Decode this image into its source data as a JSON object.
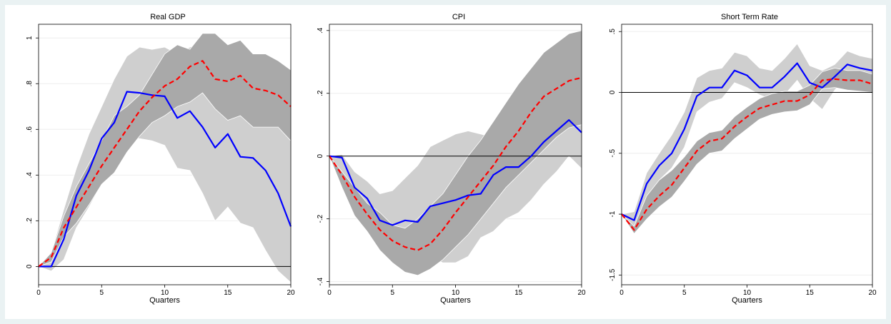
{
  "chart_data": [
    {
      "type": "line",
      "title": "Real GDP",
      "xlabel": "Quarters",
      "ylabel": "",
      "xlim": [
        0,
        20
      ],
      "ylim": [
        -0.08,
        1.06
      ],
      "x_ticks": [
        0,
        5,
        10,
        15,
        20
      ],
      "x_tick_labels": [
        "0",
        "5",
        "10",
        "15",
        "20"
      ],
      "y_ticks": [
        0,
        0.2,
        0.4,
        0.6,
        0.8,
        1
      ],
      "y_tick_labels": [
        "0",
        ".2",
        ".4",
        ".6",
        ".8",
        "1"
      ],
      "zero_line": true,
      "x": [
        0,
        1,
        2,
        3,
        4,
        5,
        6,
        7,
        8,
        9,
        10,
        11,
        12,
        13,
        14,
        15,
        16,
        17,
        18,
        19,
        20
      ],
      "series": [
        {
          "style": "solid",
          "color": "#0000ff",
          "values": [
            0,
            0,
            0.12,
            0.31,
            0.42,
            0.56,
            0.63,
            0.765,
            0.76,
            0.75,
            0.745,
            0.65,
            0.68,
            0.61,
            0.52,
            0.58,
            0.48,
            0.475,
            0.42,
            0.32,
            0.175
          ]
        },
        {
          "style": "dashed",
          "color": "#ff0000",
          "values": [
            0,
            0.04,
            0.17,
            0.26,
            0.35,
            0.44,
            0.52,
            0.6,
            0.68,
            0.74,
            0.79,
            0.82,
            0.875,
            0.9,
            0.82,
            0.81,
            0.835,
            0.78,
            0.77,
            0.75,
            0.7
          ]
        }
      ],
      "bands": [
        {
          "color": "#cfcfcf",
          "upper": [
            0,
            0.06,
            0.25,
            0.43,
            0.58,
            0.7,
            0.82,
            0.92,
            0.96,
            0.95,
            0.96,
            0.93,
            0.96,
            0.98,
            0.97,
            0.97,
            0.99,
            0.93,
            0.93,
            0.87,
            0.63
          ],
          "lower": [
            0,
            -0.02,
            0.03,
            0.17,
            0.26,
            0.36,
            0.46,
            0.56,
            0.56,
            0.55,
            0.53,
            0.43,
            0.42,
            0.32,
            0.2,
            0.26,
            0.19,
            0.17,
            0.07,
            -0.02,
            -0.07
          ]
        },
        {
          "color": "#a9a9a9",
          "upper": [
            0,
            0.06,
            0.22,
            0.35,
            0.45,
            0.55,
            0.66,
            0.7,
            0.75,
            0.84,
            0.93,
            0.97,
            0.95,
            1.02,
            1.02,
            0.97,
            0.99,
            0.93,
            0.93,
            0.9,
            0.86
          ],
          "lower": [
            0,
            0.02,
            0.13,
            0.19,
            0.27,
            0.36,
            0.41,
            0.5,
            0.57,
            0.63,
            0.66,
            0.7,
            0.72,
            0.76,
            0.69,
            0.64,
            0.66,
            0.61,
            0.61,
            0.61,
            0.55
          ]
        }
      ]
    },
    {
      "type": "line",
      "title": "CPI",
      "xlabel": "Quarters",
      "ylabel": "",
      "xlim": [
        0,
        20
      ],
      "ylim": [
        -0.41,
        0.42
      ],
      "x_ticks": [
        0,
        5,
        10,
        15,
        20
      ],
      "x_tick_labels": [
        "0",
        "5",
        "10",
        "15",
        "20"
      ],
      "y_ticks": [
        -0.4,
        -0.2,
        0,
        0.2,
        0.4
      ],
      "y_tick_labels": [
        "-.4",
        "-.2",
        "0",
        ".2",
        ".4"
      ],
      "zero_line": true,
      "x": [
        0,
        1,
        2,
        3,
        4,
        5,
        6,
        7,
        8,
        9,
        10,
        11,
        12,
        13,
        14,
        15,
        16,
        17,
        18,
        19,
        20
      ],
      "series": [
        {
          "style": "solid",
          "color": "#0000ff",
          "values": [
            0,
            -0.005,
            -0.1,
            -0.135,
            -0.205,
            -0.22,
            -0.205,
            -0.21,
            -0.16,
            -0.15,
            -0.14,
            -0.125,
            -0.12,
            -0.06,
            -0.035,
            -0.035,
            0,
            0.045,
            0.08,
            0.115,
            0.075
          ]
        },
        {
          "style": "dashed",
          "color": "#ff0000",
          "values": [
            0,
            -0.06,
            -0.13,
            -0.185,
            -0.235,
            -0.27,
            -0.29,
            -0.3,
            -0.28,
            -0.235,
            -0.18,
            -0.13,
            -0.08,
            -0.03,
            0.03,
            0.08,
            0.14,
            0.19,
            0.215,
            0.24,
            0.25
          ]
        }
      ],
      "bands": [
        {
          "color": "#cfcfcf",
          "upper": [
            0,
            0.005,
            -0.05,
            -0.08,
            -0.12,
            -0.11,
            -0.07,
            -0.03,
            0.03,
            0.05,
            0.07,
            0.08,
            0.07,
            0.06,
            0.04,
            0.02,
            0.02,
            0.05,
            0.09,
            0.12,
            0.13
          ],
          "lower": [
            0,
            -0.07,
            -0.16,
            -0.23,
            -0.29,
            -0.32,
            -0.34,
            -0.34,
            -0.32,
            -0.34,
            -0.34,
            -0.32,
            -0.26,
            -0.24,
            -0.2,
            -0.18,
            -0.14,
            -0.09,
            -0.05,
            0.0,
            -0.04
          ]
        },
        {
          "color": "#a9a9a9",
          "upper": [
            0,
            -0.05,
            -0.1,
            -0.15,
            -0.18,
            -0.22,
            -0.23,
            -0.2,
            -0.16,
            -0.12,
            -0.06,
            0.0,
            0.05,
            0.11,
            0.17,
            0.23,
            0.28,
            0.33,
            0.36,
            0.39,
            0.4
          ]
        },
        {
          "color": "#a9a9a9",
          "lower": [
            0,
            -0.1,
            -0.19,
            -0.24,
            -0.3,
            -0.34,
            -0.37,
            -0.38,
            -0.36,
            -0.33,
            -0.29,
            -0.25,
            -0.2,
            -0.15,
            -0.1,
            -0.06,
            -0.02,
            0.02,
            0.06,
            0.09,
            0.1
          ]
        }
      ]
    },
    {
      "type": "line",
      "title": "Short Term Rate",
      "xlabel": "Quarters",
      "ylabel": "",
      "xlim": [
        0,
        20
      ],
      "ylim": [
        -1.58,
        0.56
      ],
      "x_ticks": [
        0,
        5,
        10,
        15,
        20
      ],
      "x_tick_labels": [
        "0",
        "5",
        "10",
        "15",
        "20"
      ],
      "y_ticks": [
        -1.5,
        -1,
        -0.5,
        0,
        0.5
      ],
      "y_tick_labels": [
        "-1.5",
        "-1",
        "-.5",
        "0",
        ".5"
      ],
      "zero_line": true,
      "x": [
        0,
        1,
        2,
        3,
        4,
        5,
        6,
        7,
        8,
        9,
        10,
        11,
        12,
        13,
        14,
        15,
        16,
        17,
        18,
        19,
        20
      ],
      "series": [
        {
          "style": "solid",
          "color": "#0000ff",
          "values": [
            -1,
            -1.05,
            -0.75,
            -0.6,
            -0.5,
            -0.3,
            -0.03,
            0.04,
            0.04,
            0.18,
            0.14,
            0.04,
            0.04,
            0.13,
            0.24,
            0.08,
            0.04,
            0.13,
            0.23,
            0.2,
            0.18
          ]
        },
        {
          "style": "dashed",
          "color": "#ff0000",
          "values": [
            -1,
            -1.13,
            -0.96,
            -0.85,
            -0.76,
            -0.62,
            -0.48,
            -0.4,
            -0.38,
            -0.28,
            -0.2,
            -0.13,
            -0.1,
            -0.07,
            -0.07,
            -0.02,
            0.1,
            0.11,
            0.1,
            0.1,
            0.07
          ]
        }
      ],
      "bands": [
        {
          "color": "#cfcfcf",
          "upper": [
            -1,
            -0.98,
            -0.66,
            -0.5,
            -0.35,
            -0.16,
            0.12,
            0.18,
            0.2,
            0.33,
            0.3,
            0.2,
            0.18,
            0.28,
            0.4,
            0.22,
            0.18,
            0.23,
            0.34,
            0.3,
            0.28
          ],
          "lower": [
            -1,
            -1.1,
            -0.86,
            -0.72,
            -0.62,
            -0.45,
            -0.16,
            -0.08,
            -0.05,
            0.08,
            0.04,
            -0.02,
            -0.06,
            -0.02,
            0.1,
            -0.05,
            -0.14,
            0.02,
            0.12,
            0.1,
            0.08
          ]
        },
        {
          "color": "#a9a9a9",
          "upper": [
            -1,
            -1.1,
            -0.85,
            -0.72,
            -0.64,
            -0.53,
            -0.4,
            -0.33,
            -0.31,
            -0.2,
            -0.12,
            -0.05,
            -0.01,
            0.01,
            0.01,
            0.06,
            0.17,
            0.2,
            0.18,
            0.18,
            0.15
          ],
          "lower": [
            -1,
            -1.16,
            -1.04,
            -0.94,
            -0.86,
            -0.73,
            -0.59,
            -0.5,
            -0.48,
            -0.38,
            -0.3,
            -0.22,
            -0.18,
            -0.16,
            -0.15,
            -0.1,
            0.03,
            0.04,
            0.02,
            0.01,
            0.0
          ]
        }
      ]
    }
  ]
}
